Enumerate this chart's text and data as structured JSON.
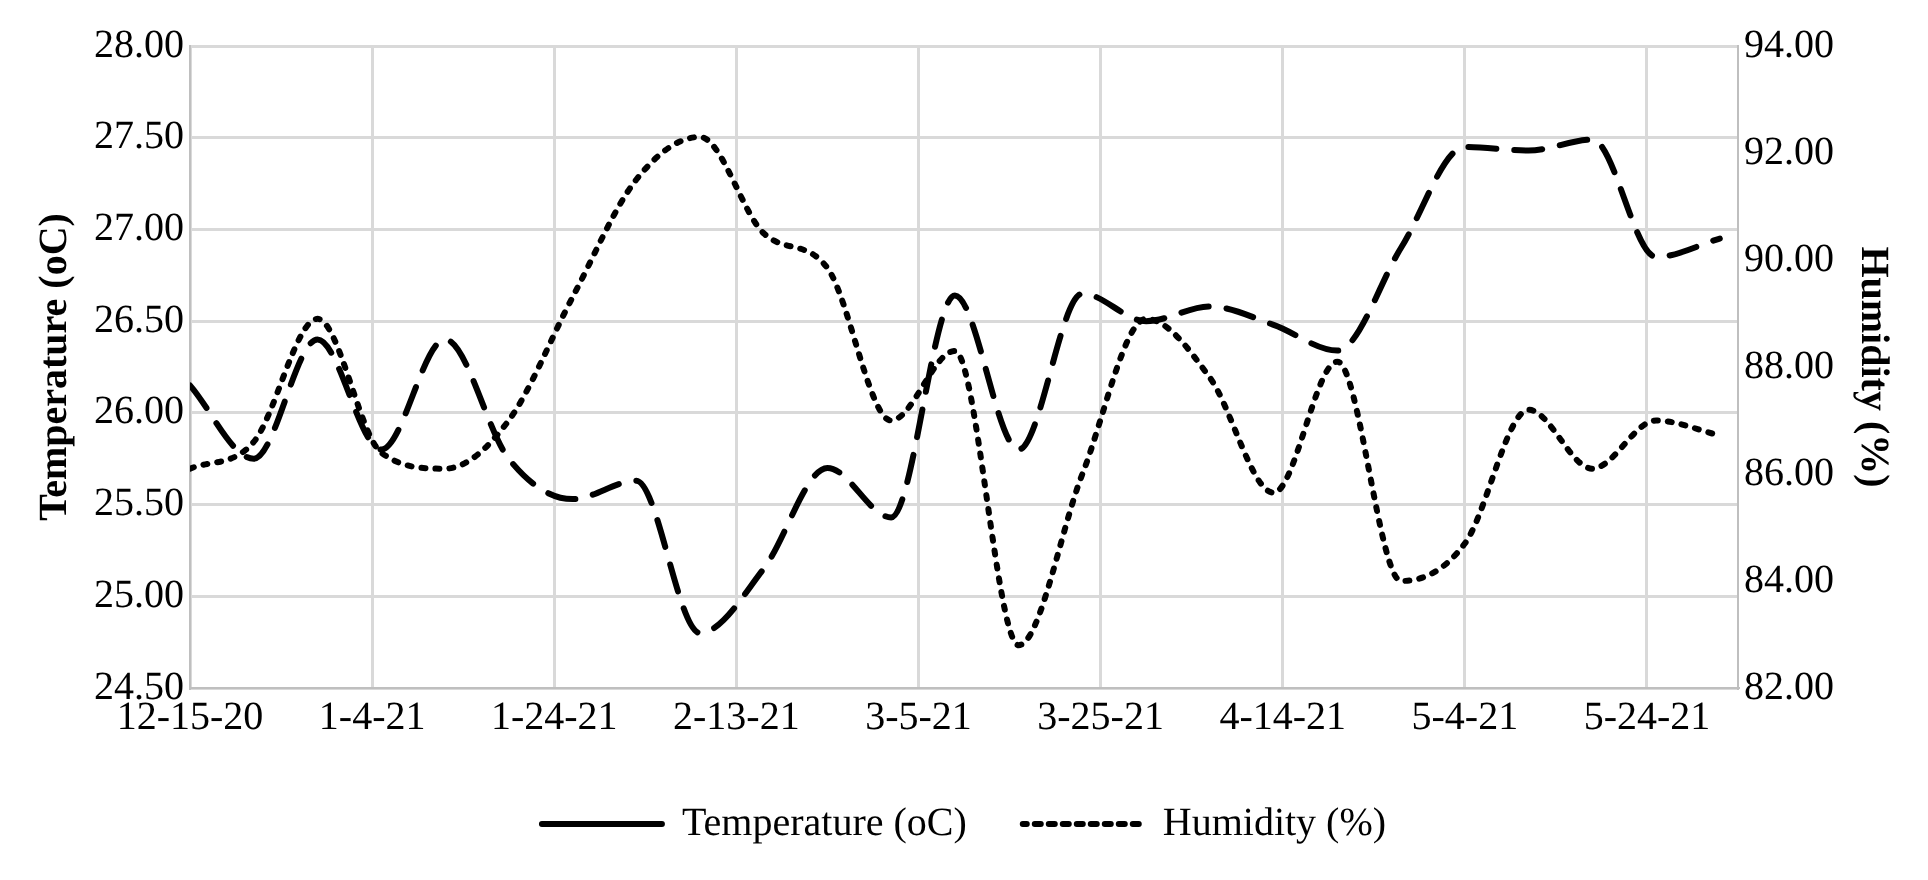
{
  "chart_data": {
    "type": "line",
    "ylabel": "Temperature (oC)",
    "y2label": "Humidity (%)",
    "x": [
      "2020-12-15",
      "2020-12-22",
      "2020-12-29",
      "2021-01-05",
      "2021-01-12",
      "2021-01-19",
      "2021-01-26",
      "2021-02-02",
      "2021-02-09",
      "2021-02-16",
      "2021-02-23",
      "2021-03-02",
      "2021-03-09",
      "2021-03-16",
      "2021-03-23",
      "2021-03-30",
      "2021-04-06",
      "2021-04-13",
      "2021-04-20",
      "2021-04-27",
      "2021-05-04",
      "2021-05-11",
      "2021-05-18",
      "2021-05-25",
      "2021-06-01"
    ],
    "series": [
      {
        "name": "Temperature (oC)",
        "color": "#000000",
        "line_style": "dashed",
        "values": [
          26.15,
          25.75,
          26.4,
          25.8,
          26.4,
          25.75,
          25.53,
          25.63,
          24.8,
          25.15,
          25.7,
          25.43,
          26.64,
          25.8,
          26.65,
          26.5,
          26.58,
          26.48,
          26.34,
          26.9,
          27.45,
          27.43,
          27.49,
          26.85,
          26.95
        ]
      },
      {
        "name": "Humidity (%)",
        "color": "#000000",
        "line_style": "dotted",
        "axis": "y2",
        "values": [
          86.1,
          86.6,
          88.9,
          86.4,
          86.1,
          87.0,
          89.3,
          91.5,
          92.3,
          90.5,
          89.85,
          87.0,
          88.3,
          82.8,
          86.0,
          88.9,
          87.8,
          85.65,
          88.1,
          84.0,
          84.7,
          87.2,
          86.1,
          87.0,
          86.72
        ]
      }
    ],
    "xlim": [
      "2020-12-15",
      "2021-06-03"
    ],
    "xticks": [
      {
        "value": "2020-12-15",
        "label": "12-15-20"
      },
      {
        "value": "2021-01-04",
        "label": "1-4-21"
      },
      {
        "value": "2021-01-24",
        "label": "1-24-21"
      },
      {
        "value": "2021-02-13",
        "label": "2-13-21"
      },
      {
        "value": "2021-03-05",
        "label": "3-5-21"
      },
      {
        "value": "2021-03-25",
        "label": "3-25-21"
      },
      {
        "value": "2021-04-14",
        "label": "4-14-21"
      },
      {
        "value": "2021-05-04",
        "label": "5-4-21"
      },
      {
        "value": "2021-05-24",
        "label": "5-24-21"
      }
    ],
    "ylim": [
      24.5,
      28
    ],
    "yticks": [
      {
        "value": 24.5,
        "label": "24.50"
      },
      {
        "value": 25,
        "label": "25.00"
      },
      {
        "value": 25.5,
        "label": "25.50"
      },
      {
        "value": 26,
        "label": "26.00"
      },
      {
        "value": 26.5,
        "label": "26.50"
      },
      {
        "value": 27,
        "label": "27.00"
      },
      {
        "value": 27.5,
        "label": "27.50"
      },
      {
        "value": 28,
        "label": "28.00"
      }
    ],
    "y2lim": [
      82,
      94
    ],
    "y2ticks": [
      {
        "value": 82,
        "label": "82.00"
      },
      {
        "value": 84,
        "label": "84.00"
      },
      {
        "value": 86,
        "label": "86.00"
      },
      {
        "value": 88,
        "label": "88.00"
      },
      {
        "value": 90,
        "label": "90.00"
      },
      {
        "value": 92,
        "label": "92.00"
      },
      {
        "value": 94,
        "label": "94.00"
      }
    ],
    "grid": true,
    "legend": "bottom",
    "marker": "none"
  }
}
